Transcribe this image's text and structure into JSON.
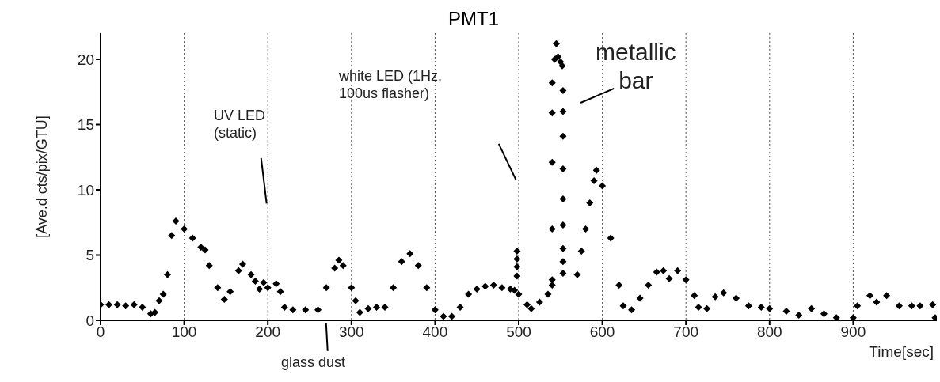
{
  "chart_data": {
    "type": "scatter",
    "title": "PMT1",
    "xlabel": "Time[sec]",
    "ylabel": "[Ave.d cts/pix/GTU]",
    "annotations": [
      "UV LED\n(static)",
      "white LED (1Hz,\n100us flasher)",
      "metallic\nbar",
      "glass dust"
    ],
    "xlim": [
      0,
      1000
    ],
    "xticks": [
      0,
      100,
      200,
      300,
      400,
      500,
      600,
      700,
      800,
      900
    ],
    "ylim": [
      0,
      22
    ],
    "yticks": [
      0,
      5,
      10,
      15,
      20
    ],
    "grid": "x",
    "marker": "diamond",
    "legend": false,
    "series": [
      {
        "color": "#000000",
        "x": [
          0,
          10,
          20,
          30,
          40,
          50,
          60,
          65,
          70,
          75,
          80,
          85,
          90,
          100,
          110,
          120,
          125,
          130,
          140,
          148,
          155,
          165,
          170,
          180,
          185,
          190,
          195,
          200,
          210,
          215,
          220,
          230,
          245,
          260,
          270,
          280,
          285,
          290,
          300,
          305,
          310,
          320,
          330,
          340,
          350,
          360,
          370,
          380,
          390,
          400,
          410,
          420,
          430,
          440,
          450,
          460,
          470,
          480,
          490,
          495,
          498,
          498,
          498,
          498,
          500,
          510,
          515,
          525,
          535,
          540,
          540,
          540,
          540,
          540,
          540,
          543,
          545,
          547,
          550,
          552,
          553,
          553,
          553,
          553,
          553,
          553,
          553,
          553,
          553,
          570,
          575,
          580,
          585,
          590,
          593,
          600,
          610,
          620,
          625,
          635,
          645,
          655,
          665,
          673,
          680,
          690,
          700,
          710,
          715,
          725,
          735,
          745,
          760,
          775,
          790,
          800,
          820,
          835,
          850,
          865,
          880,
          900,
          905,
          920,
          928,
          940,
          955,
          970,
          980,
          995,
          998
        ],
        "values": [
          1.2,
          1.2,
          1.2,
          1.1,
          1.2,
          1.0,
          0.5,
          0.6,
          1.5,
          2.0,
          3.5,
          6.5,
          7.6,
          7.0,
          6.3,
          5.6,
          5.4,
          4.2,
          2.5,
          1.6,
          2.2,
          3.8,
          4.3,
          3.5,
          3.0,
          2.4,
          2.9,
          2.5,
          2.8,
          2.2,
          1.0,
          0.8,
          0.8,
          0.8,
          2.5,
          4.0,
          4.6,
          4.2,
          2.5,
          1.5,
          0.6,
          0.9,
          1.0,
          1.0,
          2.5,
          4.5,
          5.1,
          4.2,
          2.5,
          0.8,
          0.3,
          0.3,
          1.0,
          2.0,
          2.4,
          2.6,
          2.7,
          2.5,
          2.4,
          2.3,
          5.3,
          4.7,
          4.1,
          3.4,
          2.0,
          1.2,
          0.9,
          1.4,
          2.0,
          2.7,
          3.1,
          7.0,
          12.1,
          15.9,
          18.2,
          20.0,
          21.2,
          20.2,
          19.8,
          19.5,
          17.6,
          16.0,
          14.1,
          11.6,
          9.3,
          7.3,
          5.5,
          4.5,
          3.6,
          3.5,
          5.3,
          7.0,
          9.0,
          10.7,
          11.5,
          10.3,
          6.3,
          2.7,
          1.1,
          0.8,
          1.7,
          2.7,
          3.7,
          3.8,
          3.2,
          3.8,
          3.1,
          1.9,
          1.0,
          0.9,
          1.8,
          2.1,
          1.7,
          1.1,
          1.0,
          0.9,
          0.7,
          0.4,
          0.9,
          0.5,
          0.2,
          0.2,
          1.1,
          1.9,
          1.4,
          1.9,
          1.1,
          1.1,
          1.1,
          1.2,
          0.2
        ]
      }
    ]
  }
}
